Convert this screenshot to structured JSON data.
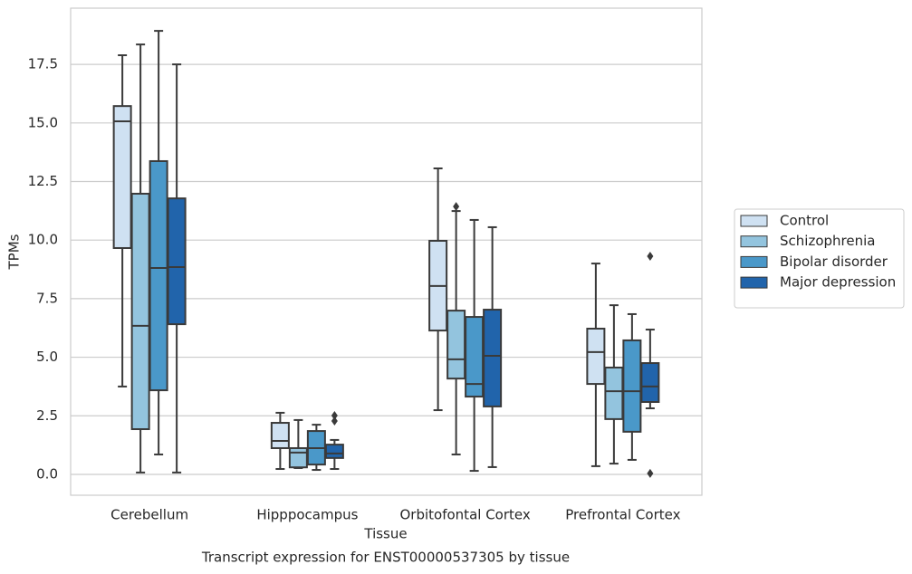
{
  "chart_data": {
    "type": "box",
    "caption": "Transcript expression for ENST00000537305 by tissue",
    "x_label": "Tissue",
    "y_label": "TPMs",
    "categories": [
      "Cerebellum",
      "Hipppocampus",
      "Orbitofontal Cortex",
      "Prefrontal Cortex"
    ],
    "ylim": [
      -0.89,
      19.9
    ],
    "yticks": [
      {
        "value": 0,
        "label": "0.0"
      },
      2.5,
      {
        "value": 5,
        "label": "5.0"
      },
      7.5,
      {
        "value": 10,
        "label": "10.0"
      },
      12.5,
      {
        "value": 15,
        "label": "15.0"
      },
      17.5
    ],
    "grid": true,
    "legend": "right",
    "series": [
      {
        "name": "Control",
        "color": "#cfe1f2",
        "boxes": [
          {
            "min": 3.75,
            "q1": 9.66,
            "median": 15.07,
            "q3": 15.72,
            "max": 17.89
          },
          {
            "min": 0.23,
            "q1": 1.12,
            "median": 1.43,
            "q3": 2.2,
            "max": 2.63
          },
          {
            "min": 2.74,
            "q1": 6.14,
            "median": 8.04,
            "q3": 9.97,
            "max": 13.06
          },
          {
            "min": 0.35,
            "q1": 3.86,
            "median": 5.22,
            "q3": 6.22,
            "max": 9.0
          }
        ]
      },
      {
        "name": "Schizophrenia",
        "color": "#93c4de",
        "boxes": [
          {
            "min": 0.08,
            "q1": 1.93,
            "median": 6.34,
            "q3": 11.98,
            "max": 18.35
          },
          {
            "min": 0.27,
            "q1": 0.3,
            "median": 0.93,
            "q3": 1.12,
            "max": 2.32
          },
          {
            "min": 0.85,
            "q1": 4.09,
            "median": 4.91,
            "q3": 6.99,
            "max": 11.24,
            "outliers": [
              11.43
            ]
          },
          {
            "min": 0.46,
            "q1": 2.36,
            "median": 3.55,
            "q3": 4.56,
            "max": 7.22
          }
        ]
      },
      {
        "name": "Bipolar disorder",
        "color": "#4a98c9",
        "boxes": [
          {
            "min": 0.85,
            "q1": 3.59,
            "median": 8.81,
            "q3": 13.37,
            "max": 18.93
          },
          {
            "min": 0.19,
            "q1": 0.42,
            "median": 1.12,
            "q3": 1.85,
            "max": 2.12
          },
          {
            "min": 0.15,
            "q1": 3.32,
            "median": 3.86,
            "q3": 6.72,
            "max": 10.86
          },
          {
            "min": 0.62,
            "q1": 1.82,
            "median": 3.55,
            "q3": 5.72,
            "max": 6.84
          }
        ]
      },
      {
        "name": "Major depression",
        "color": "#2164ab",
        "boxes": [
          {
            "min": 0.08,
            "q1": 6.41,
            "median": 8.85,
            "q3": 11.78,
            "max": 17.5
          },
          {
            "min": 0.23,
            "q1": 0.7,
            "median": 0.89,
            "q3": 1.27,
            "max": 1.47,
            "outliers": [
              2.51,
              2.28
            ]
          },
          {
            "min": 0.31,
            "q1": 2.9,
            "median": 5.06,
            "q3": 7.03,
            "max": 10.55
          },
          {
            "min": 2.82,
            "q1": 3.09,
            "median": 3.75,
            "q3": 4.75,
            "max": 6.18,
            "outliers": [
              9.31,
              0.04
            ]
          }
        ]
      }
    ]
  }
}
